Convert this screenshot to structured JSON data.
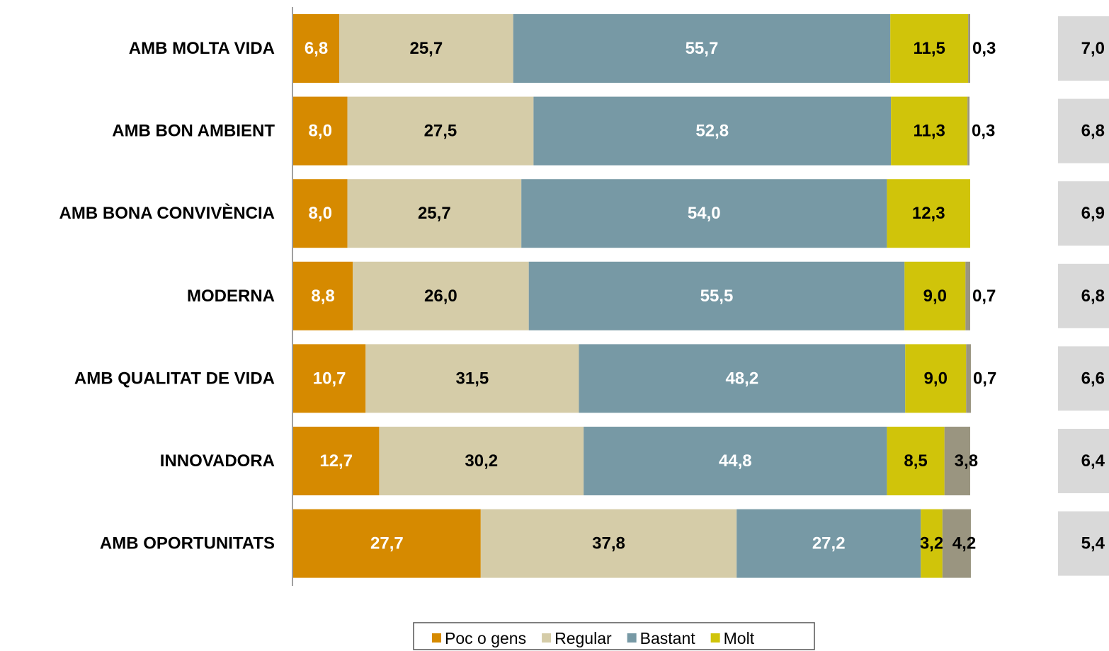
{
  "chart_data": {
    "type": "stacked-bar-horizontal",
    "categories": [
      "AMB MOLTA VIDA",
      "AMB BON AMBIENT",
      "AMB BONA CONVIVÈNCIA",
      "MODERNA",
      "AMB QUALITAT DE VIDA",
      "INNOVADORA",
      "AMB OPORTUNITATS"
    ],
    "xlim": [
      0,
      100
    ],
    "series": [
      {
        "name": "Poc o gens",
        "color": "#d68a00",
        "values": [
          6.8,
          8.0,
          8.0,
          8.8,
          10.7,
          12.7,
          27.7
        ],
        "value_labels": [
          "6,8",
          "8,0",
          "8,0",
          "8,8",
          "10,7",
          "12,7",
          "27,7"
        ]
      },
      {
        "name": "Regular",
        "color": "#d5cca8",
        "values": [
          25.7,
          27.5,
          25.7,
          26.0,
          31.5,
          30.2,
          37.8
        ],
        "value_labels": [
          "25,7",
          "27,5",
          "25,7",
          "26,0",
          "31,5",
          "30,2",
          "37,8"
        ]
      },
      {
        "name": "Bastant",
        "color": "#7799a5",
        "values": [
          55.7,
          52.8,
          54.0,
          55.5,
          48.2,
          44.8,
          27.2
        ],
        "value_labels": [
          "55,7",
          "52,8",
          "54,0",
          "55,5",
          "48,2",
          "44,8",
          "27,2"
        ]
      },
      {
        "name": "Molt",
        "color": "#d0c40a",
        "values": [
          11.5,
          11.3,
          12.3,
          9.0,
          9.0,
          8.5,
          3.2
        ],
        "value_labels": [
          "11,5",
          "11,3",
          "12,3",
          "9,0",
          "9,0",
          "8,5",
          "3,2"
        ]
      },
      {
        "color": "#9a9580",
        "values": [
          0.3,
          0.3,
          null,
          0.7,
          0.7,
          3.8,
          4.2
        ],
        "value_labels": [
          "0,3",
          "0,3",
          null,
          "0,7",
          "0,7",
          "3,8",
          "4,2"
        ]
      }
    ],
    "scores": {
      "values": [
        7.0,
        6.8,
        6.9,
        6.8,
        6.6,
        6.4,
        5.4
      ],
      "value_labels": [
        "7,0",
        "6,8",
        "6,9",
        "6,8",
        "6,6",
        "6,4",
        "5,4"
      ]
    }
  }
}
